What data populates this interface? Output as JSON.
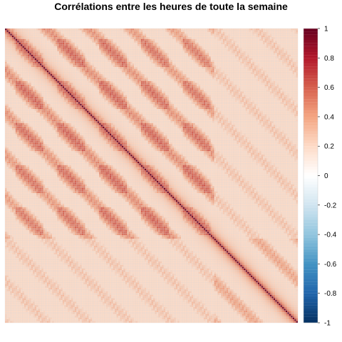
{
  "chart_data": {
    "type": "heatmap",
    "title": "Corrélations entre les heures de toute la semaine",
    "xlabel": "",
    "ylabel": "",
    "matrix_size": 168,
    "value_range": [
      -1,
      1
    ],
    "periodicity": 24,
    "structure": "Correlation matrix of 168 weekly hours; strong diagonal (1), positive 24-hour periodic blocks (about 0.3-0.6), weak negative off-phase blocks (about -0.1) in the first 120 hours, lighter positive correlations among the last 48 hours",
    "colorbar": {
      "ticks": [
        "1",
        "0.8",
        "0.6",
        "0.4",
        "0.2",
        "0",
        "-0.2",
        "-0.4",
        "-0.6",
        "-0.8",
        "-1"
      ],
      "values": [
        1,
        0.8,
        0.6,
        0.4,
        0.2,
        0,
        -0.2,
        -0.4,
        -0.6,
        -0.8,
        -1
      ],
      "colors": [
        "#67001F",
        "#B2182B",
        "#D6604D",
        "#F4A582",
        "#FDDBC7",
        "#FFFFFF",
        "#D1E5F0",
        "#92C5DE",
        "#4393C3",
        "#2166AC",
        "#053061"
      ]
    },
    "grid_color": "#d3d3d3"
  }
}
